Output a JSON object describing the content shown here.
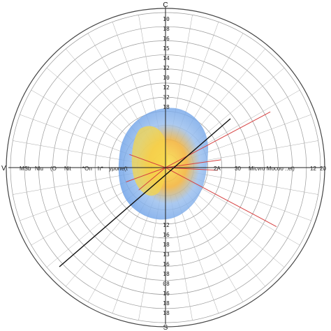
{
  "chart_data": {
    "type": "scatter",
    "title": "",
    "compass": {
      "top": "C",
      "bottom": "S",
      "left": "V"
    },
    "vertical_tick_labels_top": [
      "10",
      "18",
      "16",
      "15",
      "14",
      "12",
      "10",
      "12",
      "32",
      "18"
    ],
    "vertical_tick_labels_bottom": [
      "12",
      "16",
      "18",
      "13",
      "16",
      "18",
      "08",
      "16",
      "18",
      "18"
    ],
    "horizontal_labels_left": [
      "MSb",
      "Nlu",
      "(O",
      "Nit",
      "*On",
      "h*",
      "ypone(t"
    ],
    "horizontal_labels_right": [
      "2A",
      "30",
      "Micvro Mocoo  ..et)",
      "12",
      "20"
    ],
    "grid": true,
    "rings": 11,
    "spokes": 36,
    "colors": {
      "ring": "#9a9a9a",
      "outer_ring": "#555555",
      "axis": "#222222",
      "red_rays": "#d64040",
      "blob_blue": "#6fa4ec",
      "blob_yellow": "#f4d24a",
      "blob_orange": "#f19a35"
    }
  }
}
